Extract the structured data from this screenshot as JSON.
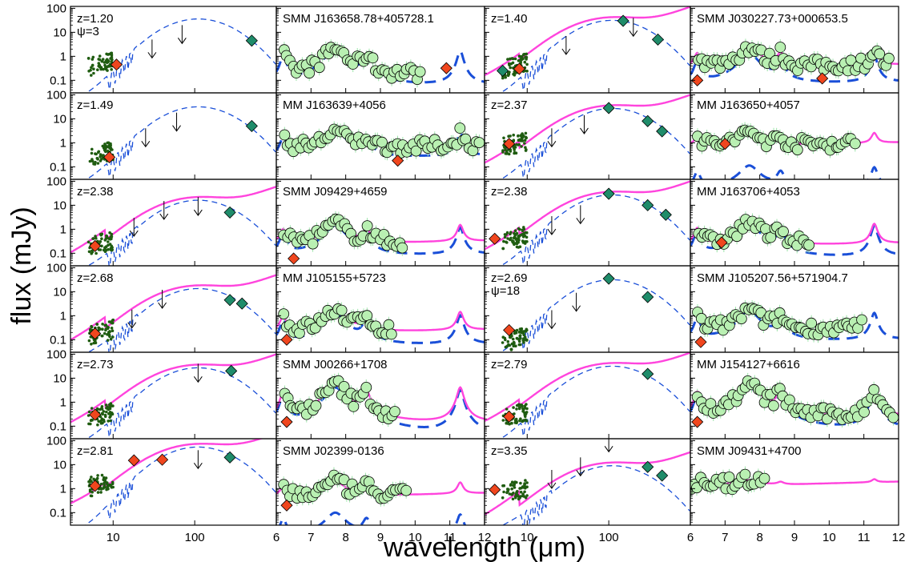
{
  "chart_data": {
    "type": "scatter",
    "xlabel": "wavelength (μm)",
    "ylabel": "flux (mJy)",
    "grid": false,
    "layout": {
      "rows": 6,
      "columns": 4
    },
    "y_axis": {
      "scale": "log",
      "ylim": [
        0.03,
        120
      ],
      "tick_labels": [
        "100",
        "10",
        "1",
        "0.1"
      ]
    },
    "sed_x_axis": {
      "scale": "log",
      "xlim": [
        3,
        1000
      ],
      "tick_labels": [
        "10",
        "100"
      ]
    },
    "irs_x_axis": {
      "scale": "linear",
      "xlim": [
        6,
        12
      ],
      "tick_labels": [
        "6",
        "7",
        "8",
        "9",
        "10",
        "11",
        "12"
      ]
    },
    "panels": [
      {
        "label": "z=1.20",
        "label2": "ψ=3",
        "kind": "sed",
        "model": "dashed-only",
        "peak": 40,
        "opt_level": 0.5,
        "diamonds_red": [
          [
            11,
            0.45
          ]
        ],
        "diamonds_green": [
          [
            500,
            4.5
          ]
        ],
        "limits": [
          [
            30,
            5
          ],
          [
            70,
            20
          ]
        ]
      },
      {
        "label": "SMM J163658.78+405728.1",
        "kind": "irs",
        "data_x": [
          6.2,
          10.2
        ],
        "pah_scale": 2.0,
        "continuum": 0.15,
        "peak_x": 7.7,
        "diamonds_red": [
          [
            10.9,
            0.32
          ]
        ],
        "model": "dashed-only",
        "dashed_scale": 1.0
      },
      {
        "label": "z=1.40",
        "kind": "sed",
        "model": "both",
        "peak": 35,
        "opt_level": 0.4,
        "diamonds_red": [
          [
            8,
            0.3
          ]
        ],
        "diamonds_green": [
          [
            5,
            0.25
          ],
          [
            150,
            30
          ],
          [
            400,
            5
          ]
        ],
        "limits": [
          [
            30,
            7
          ],
          [
            200,
            40
          ]
        ]
      },
      {
        "label": "SMM J030227.73+000653.5",
        "kind": "irs",
        "data_x": [
          6.2,
          11.8
        ],
        "pah_scale": 2.0,
        "continuum": 0.35,
        "peak_x": 7.7,
        "diamonds_red": [
          [
            6.2,
            0.1
          ],
          [
            9.8,
            0.12
          ]
        ],
        "model": "both",
        "dashed_scale": 0.6
      },
      {
        "label": "z=1.49",
        "kind": "sed",
        "model": "dashed-only",
        "peak": 35,
        "opt_level": 0.35,
        "diamonds_red": [
          [
            9,
            0.25
          ]
        ],
        "diamonds_green": [
          [
            500,
            5
          ]
        ],
        "limits": [
          [
            25,
            4
          ],
          [
            60,
            18
          ]
        ]
      },
      {
        "label": "MM J163639+4056",
        "kind": "irs",
        "data_x": [
          6.2,
          11.9
        ],
        "pah_scale": 2.5,
        "continuum": 0.6,
        "peak_x": 7.7,
        "diamonds_red": [
          [
            9.5,
            0.18
          ]
        ],
        "model": "dashed-only",
        "dashed_scale": 1.2
      },
      {
        "label": "z=2.37",
        "kind": "sed",
        "model": "both",
        "peak": 30,
        "opt_level": 0.9,
        "diamonds_red": [
          [
            6,
            0.9
          ]
        ],
        "diamonds_green": [
          [
            100,
            28
          ],
          [
            300,
            8
          ],
          [
            450,
            3
          ]
        ],
        "limits": [
          [
            20,
            4
          ],
          [
            50,
            14
          ]
        ]
      },
      {
        "label": "MM J163650+4057",
        "kind": "irs",
        "data_x": [
          6.2,
          10.8
        ],
        "pah_scale": 2.0,
        "continuum": 0.8,
        "peak_x": 7.8,
        "diamonds_red": [
          [
            7.0,
            0.9
          ]
        ],
        "model": "both",
        "dashed_scale": 0.05
      },
      {
        "label": "z=2.38",
        "kind": "sed",
        "model": "both",
        "peak": 18,
        "opt_level": 0.25,
        "diamonds_red": [
          [
            6,
            0.2
          ]
        ],
        "diamonds_green": [
          [
            270,
            5
          ]
        ],
        "limits": [
          [
            18,
            3
          ],
          [
            42,
            15
          ],
          [
            110,
            22
          ]
        ]
      },
      {
        "label": "SMM J09429+4659",
        "kind": "irs",
        "data_x": [
          6.2,
          9.7
        ],
        "pah_scale": 1.5,
        "continuum": 0.25,
        "peak_x": 7.7,
        "diamonds_red": [
          [
            6.5,
            0.06
          ]
        ],
        "model": "both",
        "dashed_scale": 0.9
      },
      {
        "label": "z=2.38",
        "kind": "sed",
        "model": "both",
        "peak": 30,
        "opt_level": 0.4,
        "diamonds_red": [
          [
            4,
            0.4
          ]
        ],
        "diamonds_green": [
          [
            100,
            30
          ],
          [
            300,
            10
          ],
          [
            500,
            4
          ]
        ],
        "limits": [
          [
            20,
            3.5
          ],
          [
            45,
            10
          ]
        ]
      },
      {
        "label": "MM  J163706+4053",
        "kind": "irs",
        "data_x": [
          6.2,
          9.5
        ],
        "pah_scale": 1.8,
        "continuum": 0.2,
        "peak_x": 7.7,
        "diamonds_red": [
          [
            6.9,
            0.28
          ]
        ],
        "model": "both",
        "dashed_scale": 0.9
      },
      {
        "label": "z=2.68",
        "kind": "sed",
        "model": "both",
        "peak": 15,
        "opt_level": 0.2,
        "diamonds_red": [
          [
            6,
            0.18
          ]
        ],
        "diamonds_green": [
          [
            270,
            4.5
          ],
          [
            380,
            3.2
          ]
        ],
        "limits": [
          [
            17,
            1.8
          ],
          [
            40,
            12
          ]
        ]
      },
      {
        "label": "MM  J105155+5723",
        "kind": "irs",
        "data_x": [
          6.2,
          9.4
        ],
        "pah_scale": 1.5,
        "continuum": 0.2,
        "peak_x": 7.7,
        "diamonds_red": [
          [
            6.3,
            0.1
          ]
        ],
        "model": "both",
        "dashed_scale": 0.8
      },
      {
        "label": "z=2.69",
        "label2": "ψ=18",
        "kind": "sed",
        "model": "dashed-only",
        "peak": 35,
        "opt_level": 0.1,
        "diamonds_red": [
          [
            6,
            0.25
          ]
        ],
        "diamonds_green": [
          [
            100,
            35
          ],
          [
            300,
            6
          ]
        ],
        "limits": [
          [
            20,
            1.7
          ],
          [
            40,
            9
          ]
        ]
      },
      {
        "label": "SMM J105207.56+571904.7",
        "kind": "irs",
        "data_x": [
          6.2,
          11.0
        ],
        "pah_scale": 1.5,
        "continuum": 0.25,
        "peak_x": 7.7,
        "diamonds_red": [
          [
            6.3,
            0.08
          ]
        ],
        "model": "dashed-only",
        "dashed_scale": 1.0
      },
      {
        "label": "z=2.73",
        "kind": "sed",
        "model": "both",
        "peak": 30,
        "opt_level": 0.3,
        "diamonds_red": [
          [
            6,
            0.3
          ]
        ],
        "diamonds_green": [
          [
            280,
            20
          ]
        ],
        "limits": [
          [
            110,
            40
          ]
        ]
      },
      {
        "label": "SMM J00266+1708",
        "kind": "irs",
        "data_x": [
          6.2,
          9.5
        ],
        "pah_scale": 5.0,
        "continuum": 0.1,
        "peak_x": 7.8,
        "diamonds_red": [
          [
            6.3,
            0.15
          ]
        ],
        "model": "both",
        "dashed_scale": 0.8
      },
      {
        "label": "z=2.79",
        "kind": "sed",
        "model": "both",
        "peak": 35,
        "opt_level": 0.3,
        "diamonds_red": [
          [
            6,
            0.25
          ]
        ],
        "diamonds_green": [
          [
            300,
            15
          ]
        ],
        "limits": []
      },
      {
        "label": "MM J154127+6616",
        "kind": "irs",
        "data_x": [
          6.2,
          11.9
        ],
        "pah_scale": 5.0,
        "continuum": 0.2,
        "peak_x": 7.7,
        "diamonds_red": [
          [
            6.2,
            0.15
          ]
        ],
        "model": "both",
        "dashed_scale": 0.8
      },
      {
        "label": "z=2.81",
        "kind": "sed",
        "model": "both",
        "peak": 60,
        "opt_level": 1.5,
        "diamonds_red": [
          [
            6,
            1.3
          ],
          [
            18,
            15
          ],
          [
            40,
            16
          ]
        ],
        "diamonds_green": [
          [
            270,
            20
          ]
        ],
        "limits": [
          [
            110,
            40
          ]
        ]
      },
      {
        "label": "SMM J02399-0136",
        "kind": "irs",
        "data_x": [
          6.2,
          9.8
        ],
        "pah_scale": 1.5,
        "continuum": 0.5,
        "peak_x": 7.7,
        "diamonds_red": [
          [
            6.3,
            0.2
          ]
        ],
        "model": "both",
        "dashed_scale": 0.06
      },
      {
        "label": "z=3.35",
        "kind": "sed",
        "model": "both",
        "peak": 10,
        "opt_level": 0.8,
        "diamonds_red": [
          [
            4,
            0.9
          ]
        ],
        "diamonds_green": [
          [
            300,
            8
          ],
          [
            450,
            3.5
          ]
        ],
        "limits": [
          [
            20,
            6
          ],
          [
            45,
            20
          ],
          [
            100,
            200
          ]
        ]
      },
      {
        "label": "SMM J09431+4700",
        "kind": "irs",
        "data_x": [
          6.0,
          8.2
        ],
        "pah_scale": 0.8,
        "continuum": 1.5,
        "peak_x": 7.7,
        "diamonds_red": [],
        "model": "magenta-only",
        "dashed_scale": 0.0
      }
    ]
  },
  "colors": {
    "model_solid": "#ff44dd",
    "model_dashed": "#1a4fd8",
    "diamond_red": "#f0461e",
    "diamond_green": "#1f8c6a",
    "irs_points": "#b9f0b2",
    "irs_errors": "#9be3a8",
    "phot_points": "#1f5c10"
  }
}
